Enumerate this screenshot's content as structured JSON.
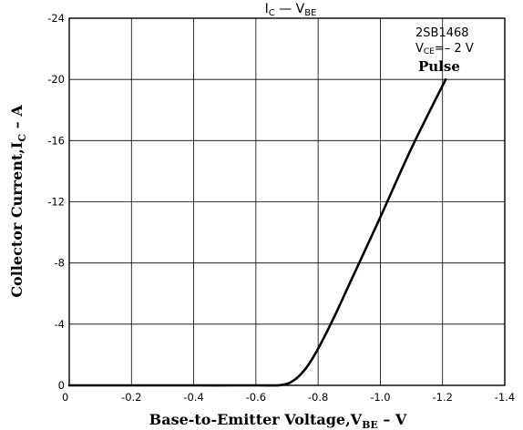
{
  "chart_data": {
    "type": "line",
    "title": {
      "main": "I",
      "main_sub": "C",
      "dash": "—",
      "var": "V",
      "var_sub": "BE"
    },
    "xlabel": {
      "pre": "Base-to-Emitter Voltage,V",
      "sub": "BE",
      "post": " – V"
    },
    "ylabel": {
      "pre": "Collector Current,I",
      "sub": "C",
      "post": " – A"
    },
    "x_ticks": [
      "0",
      "-0.2",
      "-0.4",
      "-0.6",
      "-0.8",
      "-1.0",
      "-1.2",
      "-1.4"
    ],
    "y_ticks": [
      "0",
      "-4",
      "-8",
      "-12",
      "-16",
      "-20",
      "-24"
    ],
    "xlim": [
      0,
      -1.4
    ],
    "ylim": [
      0,
      -24
    ],
    "grid": true,
    "annotations": {
      "part": "2SB1468",
      "vce_pre": "V",
      "vce_sub": "CE",
      "vce_post": "=– 2 V",
      "mode": "Pulse"
    },
    "series": [
      {
        "x": [
          0,
          -0.2,
          -0.4,
          -0.6,
          -0.68,
          -0.72,
          -0.76,
          -0.8,
          -0.85,
          -0.9,
          -1.0,
          -1.1,
          -1.21
        ],
        "y": [
          0,
          0,
          0,
          0,
          -0.02,
          -0.3,
          -1.1,
          -2.4,
          -4.4,
          -6.6,
          -11.0,
          -15.5,
          -20.0
        ]
      }
    ]
  }
}
